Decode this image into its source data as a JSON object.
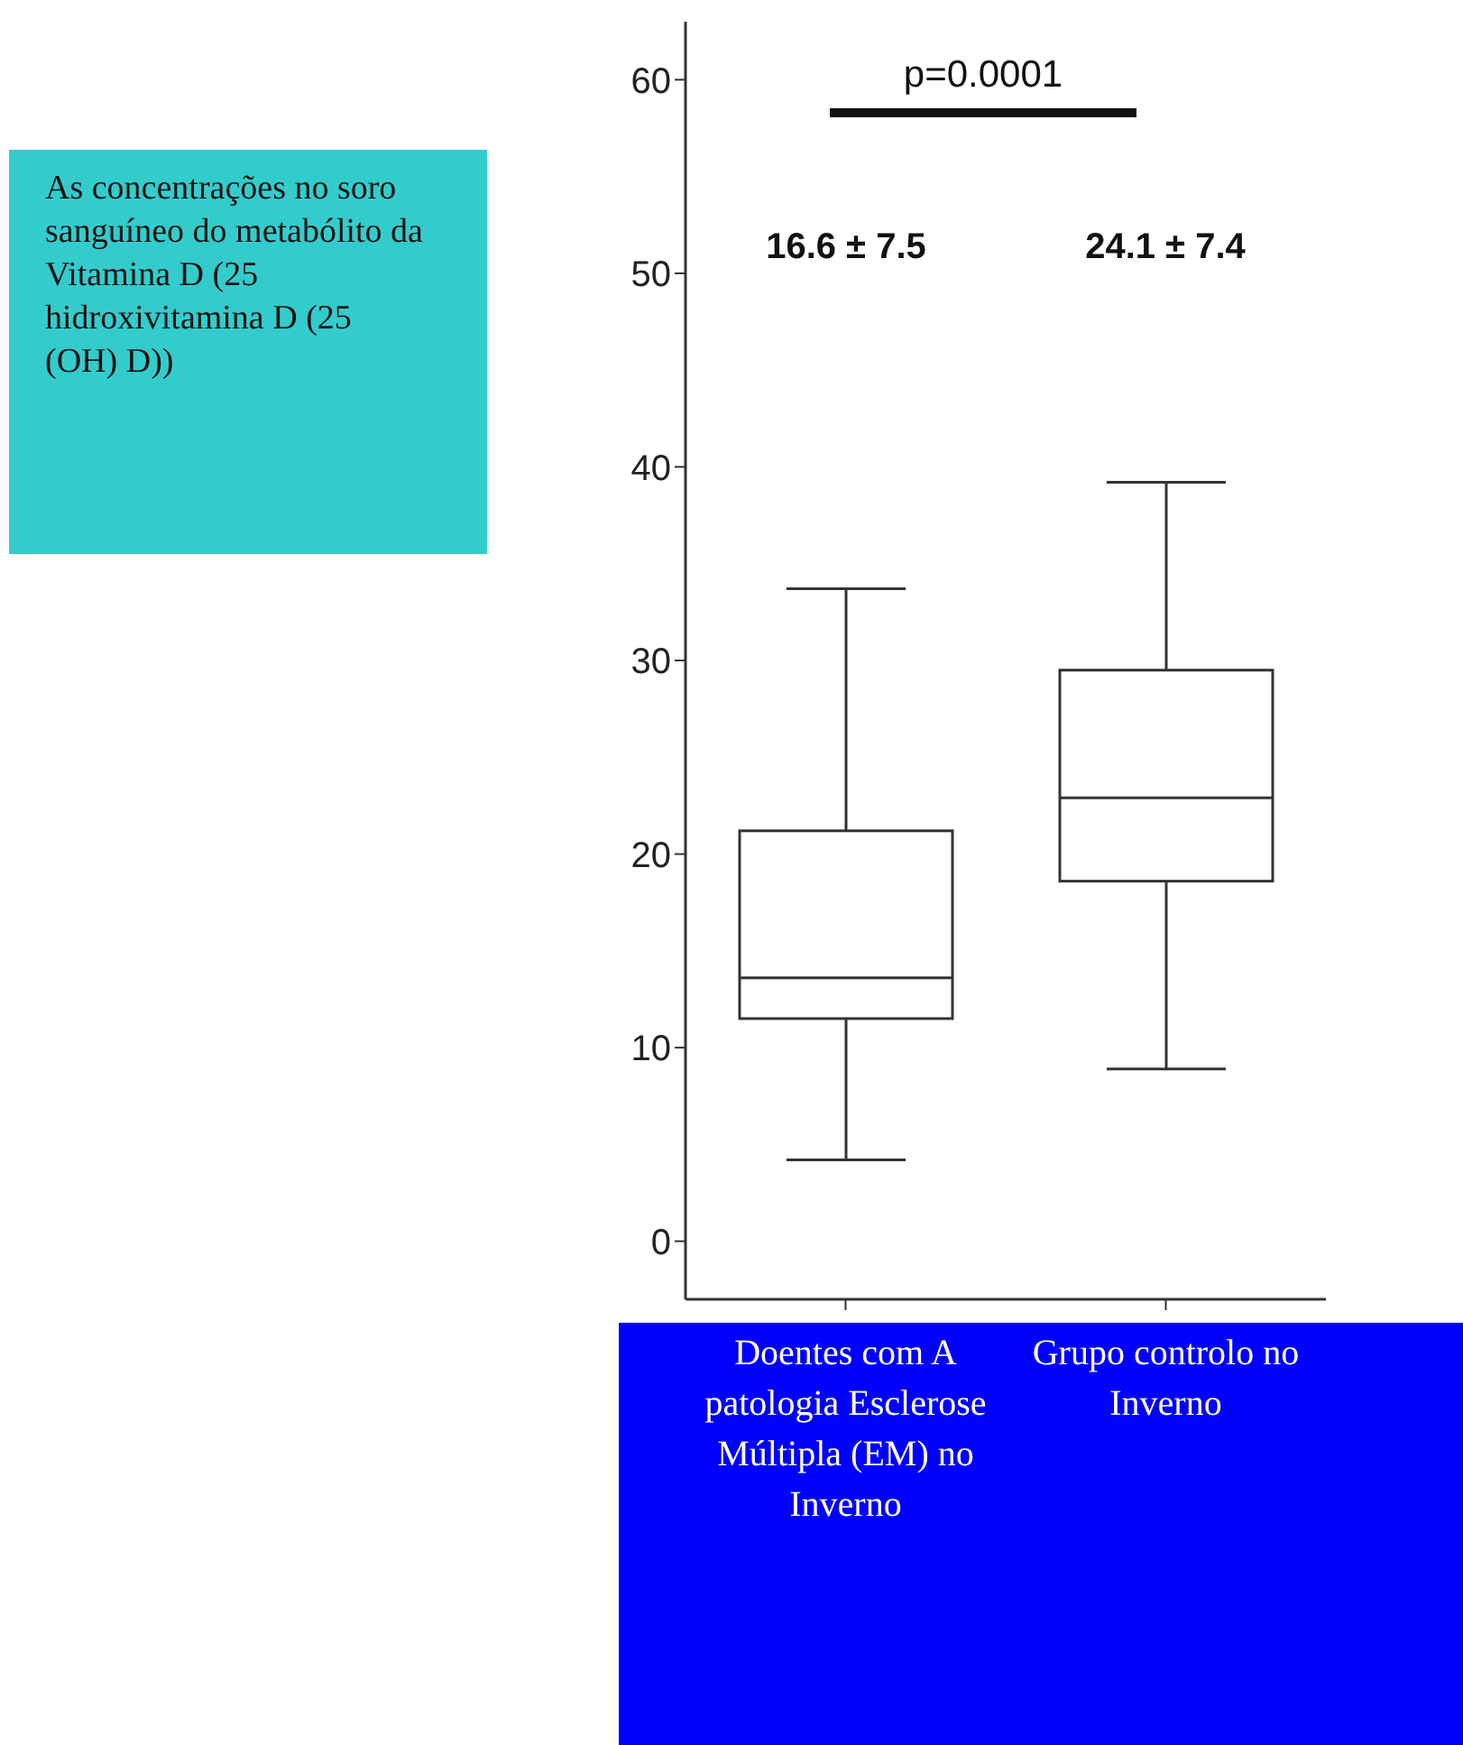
{
  "chart_data": {
    "type": "box",
    "categories": [
      "Doentes com A patologia Esclerose Múltipla (EM) no Inverno",
      "Grupo controlo no Inverno"
    ],
    "boxes": [
      {
        "low": 4.2,
        "q1": 11.5,
        "median": 13.6,
        "q3": 21.2,
        "high": 33.7
      },
      {
        "low": 8.9,
        "q1": 18.6,
        "median": 22.9,
        "q3": 29.5,
        "high": 39.2
      }
    ],
    "annotations": [
      "As concentrações no soro sanguíneo do metabólito da Vitamina D (25 hidroxivitamina D (25 (OH) D))",
      "p=0.0001",
      "16.6 ± 7.5",
      "24.1 ± 7.4"
    ],
    "ylim": [
      -3,
      63
    ],
    "yticks": [
      0,
      10,
      20,
      30,
      40,
      50,
      60
    ],
    "grid": false,
    "legend": false
  }
}
